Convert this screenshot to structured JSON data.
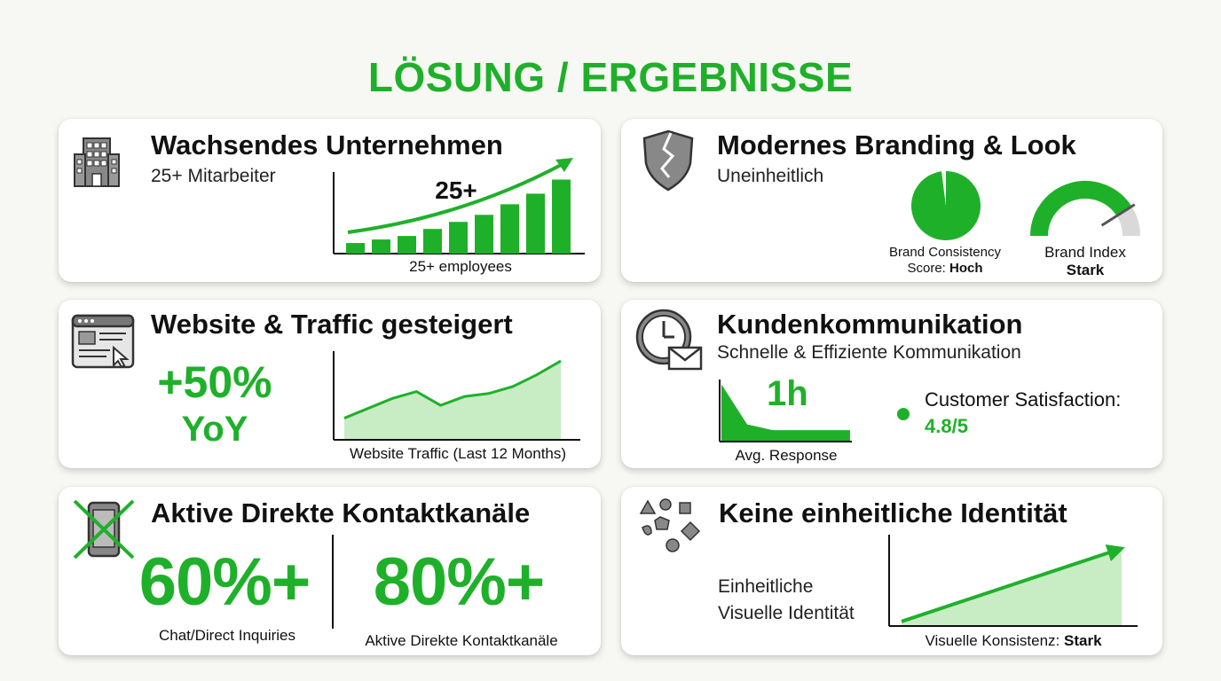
{
  "title": "LÖSUNG / ERGEBNISSE",
  "cards": {
    "growing": {
      "title": "Wachsendes Unternehmen",
      "subtitle": "25+ Mitarbeiter",
      "chart_label": "25+",
      "caption": "25+ employees",
      "icon": "building-icon"
    },
    "branding": {
      "title": "Modernes Branding & Look",
      "subtitle": "Uneinheitlich",
      "pie_caption_line1": "Brand Consistency",
      "pie_caption_prefix": "Score: ",
      "pie_caption_value": "Hoch",
      "gauge_caption_line1": "Brand Index",
      "gauge_caption_value": "Stark",
      "icon": "broken-shield-icon"
    },
    "website": {
      "title": "Website & Traffic gesteigert",
      "value": "+50%",
      "value_sub": "YoY",
      "caption": "Website Traffic (Last 12 Months)",
      "icon": "browser-window-icon"
    },
    "communication": {
      "title": "Kundenkommunikation",
      "subtitle": "Schnelle & Effiziente Kommunikation",
      "response_value": "1h",
      "response_caption": "Avg. Response",
      "satisfaction_label": "Customer Satisfaction:",
      "satisfaction_value": "4.8/5",
      "icon": "clock-envelope-icon"
    },
    "contact": {
      "title": "Aktive Direkte Kontaktkanäle",
      "value1": "60%+",
      "caption1": "Chat/Direct Inquiries",
      "value2": "80%+",
      "caption2": "Aktive Direkte Kontaktkanäle",
      "icon": "crossed-phone-icon"
    },
    "identity": {
      "title": "Keine einheitliche Identität",
      "label_line1": "Einheitliche",
      "label_line2": "Visuelle Identität",
      "caption_prefix": "Visuelle Konsistenz: ",
      "caption_value": "Stark",
      "icon": "scattered-shapes-icon"
    }
  },
  "colors": {
    "accent": "#1fb02a",
    "accent_light": "#c8ecc4",
    "gauge_track": "#d9d9d9"
  },
  "chart_data": [
    {
      "type": "bar",
      "name": "employee-growth",
      "categories": [
        "1",
        "2",
        "3",
        "4",
        "5",
        "6",
        "7",
        "8",
        "9"
      ],
      "values": [
        3,
        4,
        5,
        7,
        9,
        11,
        14,
        17,
        21
      ],
      "trend_arrow": true
    },
    {
      "type": "pie",
      "name": "brand-consistency",
      "slices": [
        {
          "label": "consistent",
          "value": 98
        },
        {
          "label": "other",
          "value": 2
        }
      ]
    },
    {
      "type": "gauge",
      "name": "brand-index",
      "value": 0.82
    },
    {
      "type": "area",
      "name": "website-traffic",
      "x": [
        1,
        2,
        3,
        4,
        5,
        6,
        7,
        8,
        9,
        10
      ],
      "values": [
        22,
        32,
        42,
        49,
        35,
        44,
        47,
        54,
        66,
        80
      ],
      "ylim": [
        0,
        90
      ]
    },
    {
      "type": "area",
      "name": "response-time",
      "x": [
        0,
        1,
        2,
        3,
        4,
        5
      ],
      "values": [
        60,
        18,
        12,
        12,
        12,
        12
      ],
      "ylim": [
        0,
        65
      ]
    },
    {
      "type": "area",
      "name": "visual-consistency",
      "x": [
        0,
        1
      ],
      "values": [
        5,
        85
      ],
      "ylim": [
        0,
        100
      ]
    }
  ]
}
